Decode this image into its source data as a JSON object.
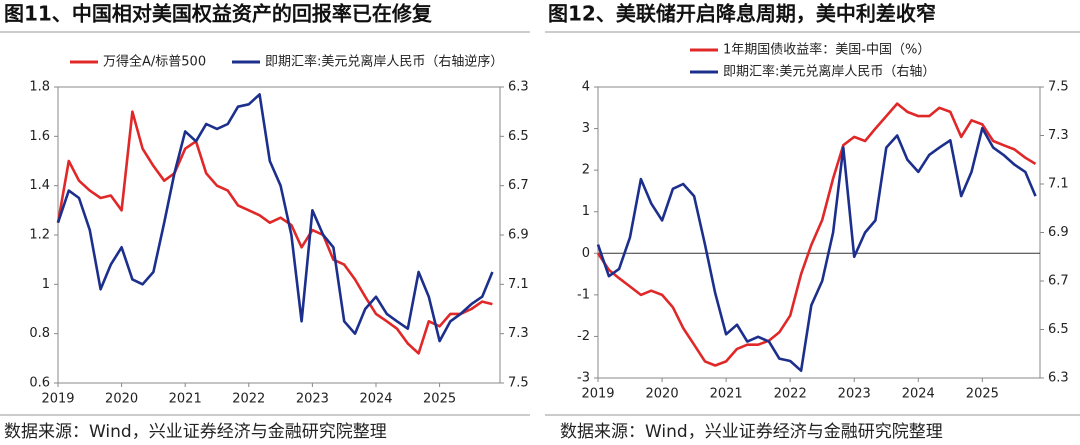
{
  "chart_data": [
    {
      "type": "line",
      "title": "图11、中国相对美国权益资产的回报率已在修复",
      "source": "数据来源：Wind，兴业证券经济与金融研究院整理",
      "x": [
        2019.0,
        2019.17,
        2019.33,
        2019.5,
        2019.67,
        2019.83,
        2020.0,
        2020.17,
        2020.33,
        2020.5,
        2020.67,
        2020.83,
        2021.0,
        2021.17,
        2021.33,
        2021.5,
        2021.67,
        2021.83,
        2022.0,
        2022.17,
        2022.33,
        2022.5,
        2022.67,
        2022.83,
        2023.0,
        2023.17,
        2023.33,
        2023.5,
        2023.67,
        2023.83,
        2024.0,
        2024.17,
        2024.33,
        2024.5,
        2024.67,
        2024.83,
        2025.0,
        2025.17,
        2025.33,
        2025.5,
        2025.67,
        2025.83
      ],
      "xlim": [
        2019,
        2025.95
      ],
      "xticks": [
        2019,
        2020,
        2021,
        2022,
        2023,
        2024,
        2025
      ],
      "ylim": [
        0.6,
        1.8
      ],
      "yticks": [
        0.6,
        0.8,
        1,
        1.2,
        1.4,
        1.6,
        1.8
      ],
      "y2lim": [
        6.3,
        7.5
      ],
      "y2ticks": [
        6.3,
        6.5,
        6.7,
        6.9,
        7.1,
        7.3,
        7.5
      ],
      "y2_reversed": true,
      "legend": "top",
      "series": [
        {
          "name": "万得全A/标普500",
          "color": "#e02828",
          "values": [
            1.25,
            1.5,
            1.42,
            1.38,
            1.35,
            1.36,
            1.3,
            1.7,
            1.55,
            1.48,
            1.42,
            1.45,
            1.55,
            1.58,
            1.45,
            1.4,
            1.38,
            1.32,
            1.3,
            1.28,
            1.25,
            1.27,
            1.24,
            1.15,
            1.22,
            1.2,
            1.1,
            1.08,
            1.02,
            0.95,
            0.88,
            0.85,
            0.82,
            0.76,
            0.72,
            0.85,
            0.83,
            0.88,
            0.88,
            0.9,
            0.93,
            0.92
          ]
        },
        {
          "name": "即期汇率:美元兑离岸人民币（右轴逆序）",
          "color": "#1c2f8c",
          "axis": "y2",
          "values": [
            6.85,
            6.72,
            6.75,
            6.88,
            7.12,
            7.02,
            6.95,
            7.08,
            7.1,
            7.05,
            6.85,
            6.65,
            6.48,
            6.52,
            6.45,
            6.47,
            6.45,
            6.38,
            6.37,
            6.33,
            6.6,
            6.7,
            6.9,
            7.25,
            6.8,
            6.9,
            6.95,
            7.25,
            7.3,
            7.2,
            7.15,
            7.22,
            7.25,
            7.28,
            7.05,
            7.15,
            7.33,
            7.25,
            7.22,
            7.18,
            7.15,
            7.05
          ]
        }
      ]
    },
    {
      "type": "line",
      "title": "图12、美联储开启降息周期，美中利差收窄",
      "source": "数据来源：Wind，兴业证券经济与金融研究院整理",
      "x": [
        2019.0,
        2019.17,
        2019.33,
        2019.5,
        2019.67,
        2019.83,
        2020.0,
        2020.17,
        2020.33,
        2020.5,
        2020.67,
        2020.83,
        2021.0,
        2021.17,
        2021.33,
        2021.5,
        2021.67,
        2021.83,
        2022.0,
        2022.17,
        2022.33,
        2022.5,
        2022.67,
        2022.83,
        2023.0,
        2023.17,
        2023.33,
        2023.5,
        2023.67,
        2023.83,
        2024.0,
        2024.17,
        2024.33,
        2024.5,
        2024.67,
        2024.83,
        2025.0,
        2025.17,
        2025.33,
        2025.5,
        2025.67,
        2025.83
      ],
      "xlim": [
        2019,
        2025.9
      ],
      "xticks": [
        2019,
        2020,
        2021,
        2022,
        2023,
        2024,
        2025
      ],
      "ylim": [
        -3,
        4
      ],
      "yticks": [
        -3,
        -2,
        -1,
        0,
        1,
        2,
        3,
        4
      ],
      "y2lim": [
        6.3,
        7.5
      ],
      "y2ticks": [
        6.3,
        6.5,
        6.7,
        6.9,
        7.1,
        7.3,
        7.5
      ],
      "zero_line": true,
      "legend": "top",
      "series": [
        {
          "name": "1年期国债收益率：美国-中国（%）",
          "color": "#e02828",
          "values": [
            0.0,
            -0.4,
            -0.6,
            -0.8,
            -1.0,
            -0.9,
            -1.0,
            -1.3,
            -1.8,
            -2.2,
            -2.6,
            -2.7,
            -2.6,
            -2.3,
            -2.2,
            -2.2,
            -2.1,
            -1.9,
            -1.5,
            -0.5,
            0.2,
            0.8,
            1.8,
            2.6,
            2.8,
            2.7,
            3.0,
            3.3,
            3.6,
            3.4,
            3.3,
            3.3,
            3.5,
            3.4,
            2.8,
            3.2,
            3.1,
            2.7,
            2.6,
            2.5,
            2.3,
            2.15
          ]
        },
        {
          "name": "即期汇率:美元兑离岸人民币（右轴）",
          "color": "#1c2f8c",
          "axis": "y2",
          "values": [
            6.85,
            6.72,
            6.75,
            6.88,
            7.12,
            7.02,
            6.95,
            7.08,
            7.1,
            7.05,
            6.85,
            6.65,
            6.48,
            6.52,
            6.45,
            6.47,
            6.45,
            6.38,
            6.37,
            6.33,
            6.6,
            6.7,
            6.9,
            7.25,
            6.8,
            6.9,
            6.95,
            7.25,
            7.3,
            7.2,
            7.15,
            7.22,
            7.25,
            7.28,
            7.05,
            7.15,
            7.33,
            7.25,
            7.22,
            7.18,
            7.15,
            7.05
          ]
        }
      ]
    }
  ]
}
